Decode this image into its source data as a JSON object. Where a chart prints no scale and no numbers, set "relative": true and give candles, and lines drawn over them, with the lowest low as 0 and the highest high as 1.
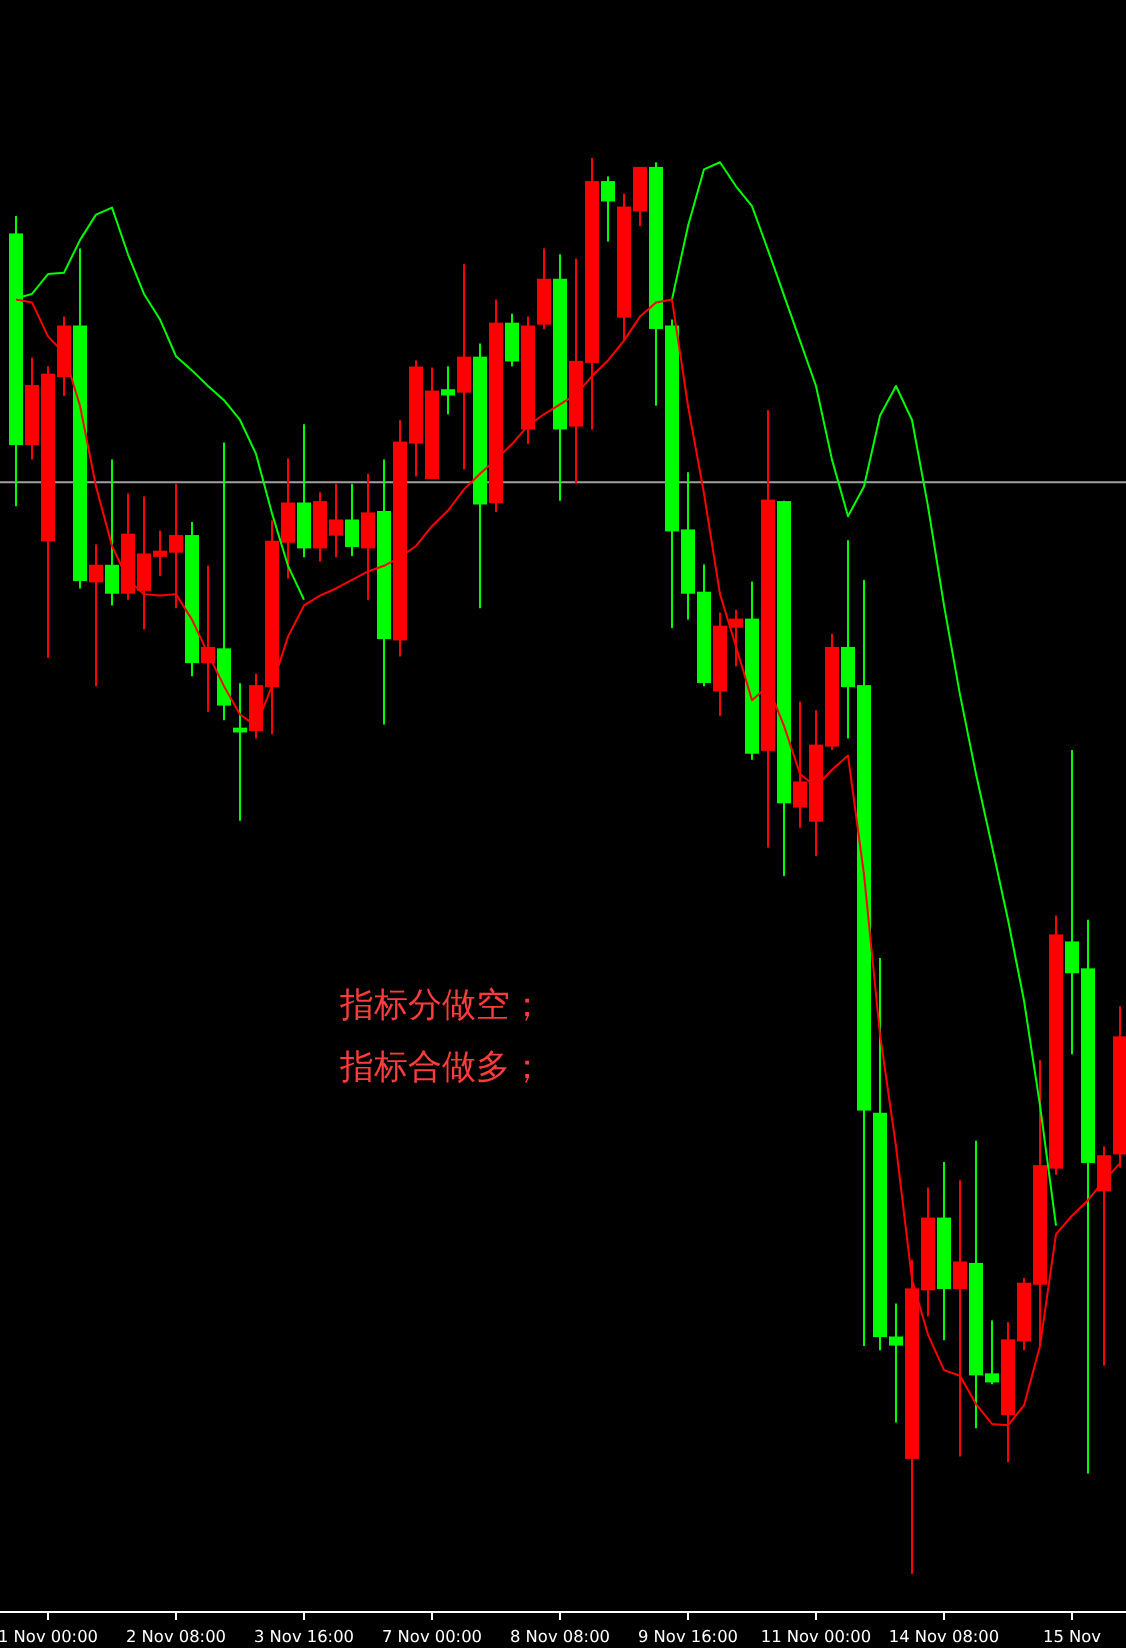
{
  "chart_data": {
    "type": "candlestick",
    "relative": true,
    "categories": [
      null,
      null,
      "1 Nov 00:00",
      null,
      null,
      null,
      null,
      null,
      null,
      null,
      "2 Nov 08:00",
      null,
      null,
      null,
      null,
      null,
      null,
      null,
      "3 Nov 16:00",
      null,
      null,
      null,
      null,
      null,
      null,
      null,
      "7 Nov 00:00",
      null,
      null,
      null,
      null,
      null,
      null,
      null,
      "8 Nov 08:00",
      null,
      null,
      null,
      null,
      null,
      null,
      null,
      "9 Nov 16:00",
      null,
      null,
      null,
      null,
      null,
      null,
      null,
      "11 Nov 00:00",
      null,
      null,
      null,
      null,
      null,
      null,
      null,
      "14 Nov 08:00",
      null,
      null,
      null,
      null,
      null,
      null,
      null,
      "15 Nov",
      null,
      null,
      null
    ],
    "ohlc": [
      [
        0.798,
        0.959,
        0.754,
        0.946
      ],
      [
        0.839,
        0.859,
        0.787,
        0.798
      ],
      [
        0.847,
        0.853,
        0.647,
        0.73
      ],
      [
        0.881,
        0.888,
        0.832,
        0.846
      ],
      [
        0.702,
        0.936,
        0.696,
        0.881
      ],
      [
        0.712,
        0.727,
        0.627,
        0.701
      ],
      [
        0.693,
        0.787,
        0.684,
        0.712
      ],
      [
        0.734,
        0.763,
        0.688,
        0.693
      ],
      [
        0.72,
        0.761,
        0.667,
        0.695
      ],
      [
        0.722,
        0.737,
        0.705,
        0.719
      ],
      [
        0.733,
        0.77,
        0.682,
        0.722
      ],
      [
        0.644,
        0.743,
        0.634,
        0.733
      ],
      [
        0.654,
        0.712,
        0.609,
        0.644
      ],
      [
        0.614,
        0.799,
        0.603,
        0.653
      ],
      [
        0.595,
        0.629,
        0.532,
        0.597
      ],
      [
        0.627,
        0.636,
        0.59,
        0.596
      ],
      [
        0.729,
        0.744,
        0.593,
        0.627
      ],
      [
        0.756,
        0.788,
        0.703,
        0.729
      ],
      [
        0.725,
        0.812,
        0.718,
        0.756
      ],
      [
        0.757,
        0.764,
        0.715,
        0.725
      ],
      [
        0.744,
        0.77,
        0.718,
        0.734
      ],
      [
        0.726,
        0.77,
        0.719,
        0.744
      ],
      [
        0.749,
        0.777,
        0.688,
        0.725
      ],
      [
        0.661,
        0.787,
        0.6,
        0.75
      ],
      [
        0.799,
        0.815,
        0.648,
        0.66
      ],
      [
        0.852,
        0.857,
        0.775,
        0.799
      ],
      [
        0.835,
        0.852,
        0.774,
        0.774
      ],
      [
        0.833,
        0.853,
        0.819,
        0.836
      ],
      [
        0.859,
        0.925,
        0.78,
        0.835
      ],
      [
        0.756,
        0.869,
        0.682,
        0.859
      ],
      [
        0.883,
        0.9,
        0.75,
        0.757
      ],
      [
        0.857,
        0.89,
        0.853,
        0.883
      ],
      [
        0.881,
        0.888,
        0.798,
        0.809
      ],
      [
        0.914,
        0.936,
        0.879,
        0.883
      ],
      [
        0.809,
        0.932,
        0.758,
        0.914
      ],
      [
        0.856,
        0.929,
        0.77,
        0.811
      ],
      [
        0.983,
        1,
        0.808,
        0.856
      ],
      [
        0.97,
        0.987,
        0.941,
        0.983
      ],
      [
        0.965,
        0.975,
        0.871,
        0.888
      ],
      [
        0.993,
        0.993,
        0.952,
        0.963
      ],
      [
        0.88,
        0.997,
        0.825,
        0.993
      ],
      [
        0.737,
        0.886,
        0.668,
        0.881
      ],
      [
        0.693,
        0.778,
        0.674,
        0.737
      ],
      [
        0.63,
        0.713,
        0.627,
        0.693
      ],
      [
        0.669,
        0.679,
        0.606,
        0.624
      ],
      [
        0.674,
        0.681,
        0.641,
        0.669
      ],
      [
        0.58,
        0.701,
        0.575,
        0.674
      ],
      [
        0.758,
        0.822,
        0.513,
        0.582
      ],
      [
        0.545,
        0.758,
        0.493,
        0.757
      ],
      [
        0.559,
        0.616,
        0.527,
        0.542
      ],
      [
        0.585,
        0.61,
        0.507,
        0.532
      ],
      [
        0.654,
        0.664,
        0.582,
        0.585
      ],
      [
        0.627,
        0.73,
        0.59,
        0.654
      ],
      [
        0.328,
        0.702,
        0.161,
        0.627
      ],
      [
        0.168,
        0.435,
        0.158,
        0.325
      ],
      [
        0.162,
        0.191,
        0.107,
        0.167
      ],
      [
        0.201,
        0.222,
        0,
        0.082
      ],
      [
        0.251,
        0.273,
        0.182,
        0.201
      ],
      [
        0.202,
        0.291,
        0.165,
        0.251
      ],
      [
        0.22,
        0.278,
        0.083,
        0.202
      ],
      [
        0.141,
        0.306,
        0.103,
        0.219
      ],
      [
        0.136,
        0.179,
        0.134,
        0.141
      ],
      [
        0.165,
        0.178,
        0.079,
        0.113
      ],
      [
        0.205,
        0.209,
        0.158,
        0.165
      ],
      [
        0.288,
        0.363,
        0.162,
        0.205
      ],
      [
        0.451,
        0.465,
        0.282,
        0.287
      ],
      [
        0.425,
        0.582,
        0.367,
        0.446
      ],
      [
        0.291,
        0.462,
        0.071,
        0.427
      ],
      [
        0.295,
        0.302,
        0.147,
        0.271
      ],
      [
        0.379,
        0.401,
        0.287,
        0.297
      ]
    ],
    "colors": [
      "#00ff00",
      "#ff0000",
      "#ff0000",
      "#ff0000",
      "#00ff00",
      "#ff0000",
      "#00ff00",
      "#ff0000",
      "#ff0000",
      "#ff0000",
      "#ff0000",
      "#00ff00",
      "#ff0000",
      "#00ff00",
      "#00ff00",
      "#ff0000",
      "#ff0000",
      "#ff0000",
      "#00ff00",
      "#ff0000",
      "#ff0000",
      "#00ff00",
      "#ff0000",
      "#00ff00",
      "#ff0000",
      "#ff0000",
      "#ff0000",
      "#00ff00",
      "#ff0000",
      "#00ff00",
      "#ff0000",
      "#00ff00",
      "#ff0000",
      "#ff0000",
      "#00ff00",
      "#ff0000",
      "#ff0000",
      "#00ff00",
      "#ff0000",
      "#ff0000",
      "#00ff00",
      "#00ff00",
      "#00ff00",
      "#00ff00",
      "#ff0000",
      "#ff0000",
      "#00ff00",
      "#ff0000",
      "#00ff00",
      "#ff0000",
      "#ff0000",
      "#ff0000",
      "#00ff00",
      "#00ff00",
      "#00ff00",
      "#00ff00",
      "#ff0000",
      "#ff0000",
      "#00ff00",
      "#ff0000",
      "#00ff00",
      "#00ff00",
      "#ff0000",
      "#ff0000",
      "#ff0000",
      "#ff0000",
      "#00ff00",
      "#00ff00",
      "#ff0000",
      "#ff0000"
    ],
    "series": [
      {
        "type": "line",
        "color": "#00ff00",
        "values": [
          0.901,
          0.904,
          0.918,
          0.919,
          0.942,
          0.96,
          0.965,
          0.932,
          0.904,
          0.886,
          0.86,
          0.85,
          0.839,
          0.829,
          0.815,
          0.791,
          0.749,
          0.712,
          0.688,
          null,
          null,
          null,
          null,
          null,
          null,
          null,
          null,
          null,
          null,
          null,
          null,
          null,
          null,
          null,
          null,
          null,
          null,
          null,
          null,
          null,
          null,
          0.9,
          0.952,
          0.992,
          0.997,
          0.98,
          0.966,
          0.935,
          0.903,
          0.871,
          0.839,
          0.787,
          0.747,
          0.768,
          0.818,
          0.839,
          0.815,
          0.754,
          0.684,
          0.621,
          0.565,
          0.514,
          0.462,
          0.405,
          0.331,
          0.246,
          null,
          null,
          null,
          null
        ]
      },
      {
        "type": "line",
        "color": "#ff0000",
        "values": [
          0.9,
          0.898,
          0.874,
          0.862,
          0.825,
          0.768,
          0.726,
          0.702,
          0.692,
          0.691,
          0.692,
          0.674,
          0.65,
          0.627,
          0.607,
          0.599,
          0.627,
          0.662,
          0.684,
          0.691,
          0.696,
          0.702,
          0.708,
          0.712,
          0.718,
          0.726,
          0.74,
          0.751,
          0.766,
          0.777,
          0.787,
          0.798,
          0.811,
          0.819,
          0.826,
          0.833,
          0.846,
          0.857,
          0.871,
          0.888,
          0.898,
          0.9,
          0.825,
          0.763,
          0.692,
          0.655,
          0.617,
          0.627,
          0.599,
          0.565,
          0.556,
          0.568,
          0.578,
          0.494,
          0.381,
          0.302,
          0.208,
          0.169,
          0.144,
          0.14,
          0.12,
          0.106,
          0.105,
          0.119,
          0.161,
          0.24,
          0.253,
          0.264,
          0.278,
          0.29
        ]
      }
    ],
    "ref_lines": [
      {
        "axis": "y",
        "value": 0.771,
        "color": "#a0a0a0"
      }
    ],
    "annotations": [
      "指标分做空；",
      "指标合做多；"
    ]
  }
}
